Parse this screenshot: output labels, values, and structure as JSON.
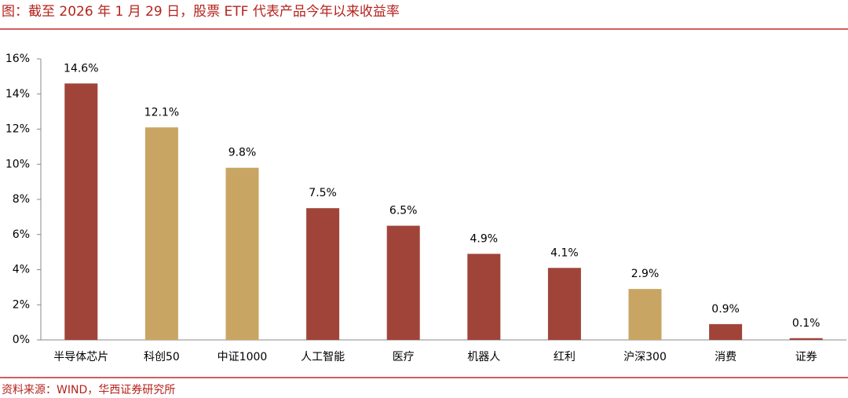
{
  "chart_data": {
    "type": "bar",
    "title": "图：截至 2026 年 1 月 29 日，股票 ETF 代表产品今年以来收益率",
    "source": "资料来源：WIND，华西证券研究所",
    "categories": [
      "半导体芯片",
      "科创50",
      "中证1000",
      "人工智能",
      "医疗",
      "机器人",
      "红利",
      "沪深300",
      "消费",
      "证券"
    ],
    "values": [
      14.6,
      12.1,
      9.8,
      7.5,
      6.5,
      4.9,
      4.1,
      2.9,
      0.9,
      0.1
    ],
    "value_labels": [
      "14.6%",
      "12.1%",
      "9.8%",
      "7.5%",
      "6.5%",
      "4.9%",
      "4.1%",
      "2.9%",
      "0.9%",
      "0.1%"
    ],
    "colors": [
      "#a0443a",
      "#c9a563",
      "#c9a563",
      "#a0443a",
      "#a0443a",
      "#a0443a",
      "#a0443a",
      "#c9a563",
      "#a0443a",
      "#a0443a"
    ],
    "ylim": [
      0,
      16
    ],
    "yticks": [
      {
        "value": 0,
        "label": "0%"
      },
      {
        "value": 2,
        "label": "2%"
      },
      {
        "value": 4,
        "label": "4%"
      },
      {
        "value": 6,
        "label": "6%"
      },
      {
        "value": 8,
        "label": "8%"
      },
      {
        "value": 10,
        "label": "10%"
      },
      {
        "value": 12,
        "label": "12%"
      },
      {
        "value": 14,
        "label": "14%"
      },
      {
        "value": 16,
        "label": "16%"
      }
    ],
    "grid": false
  }
}
